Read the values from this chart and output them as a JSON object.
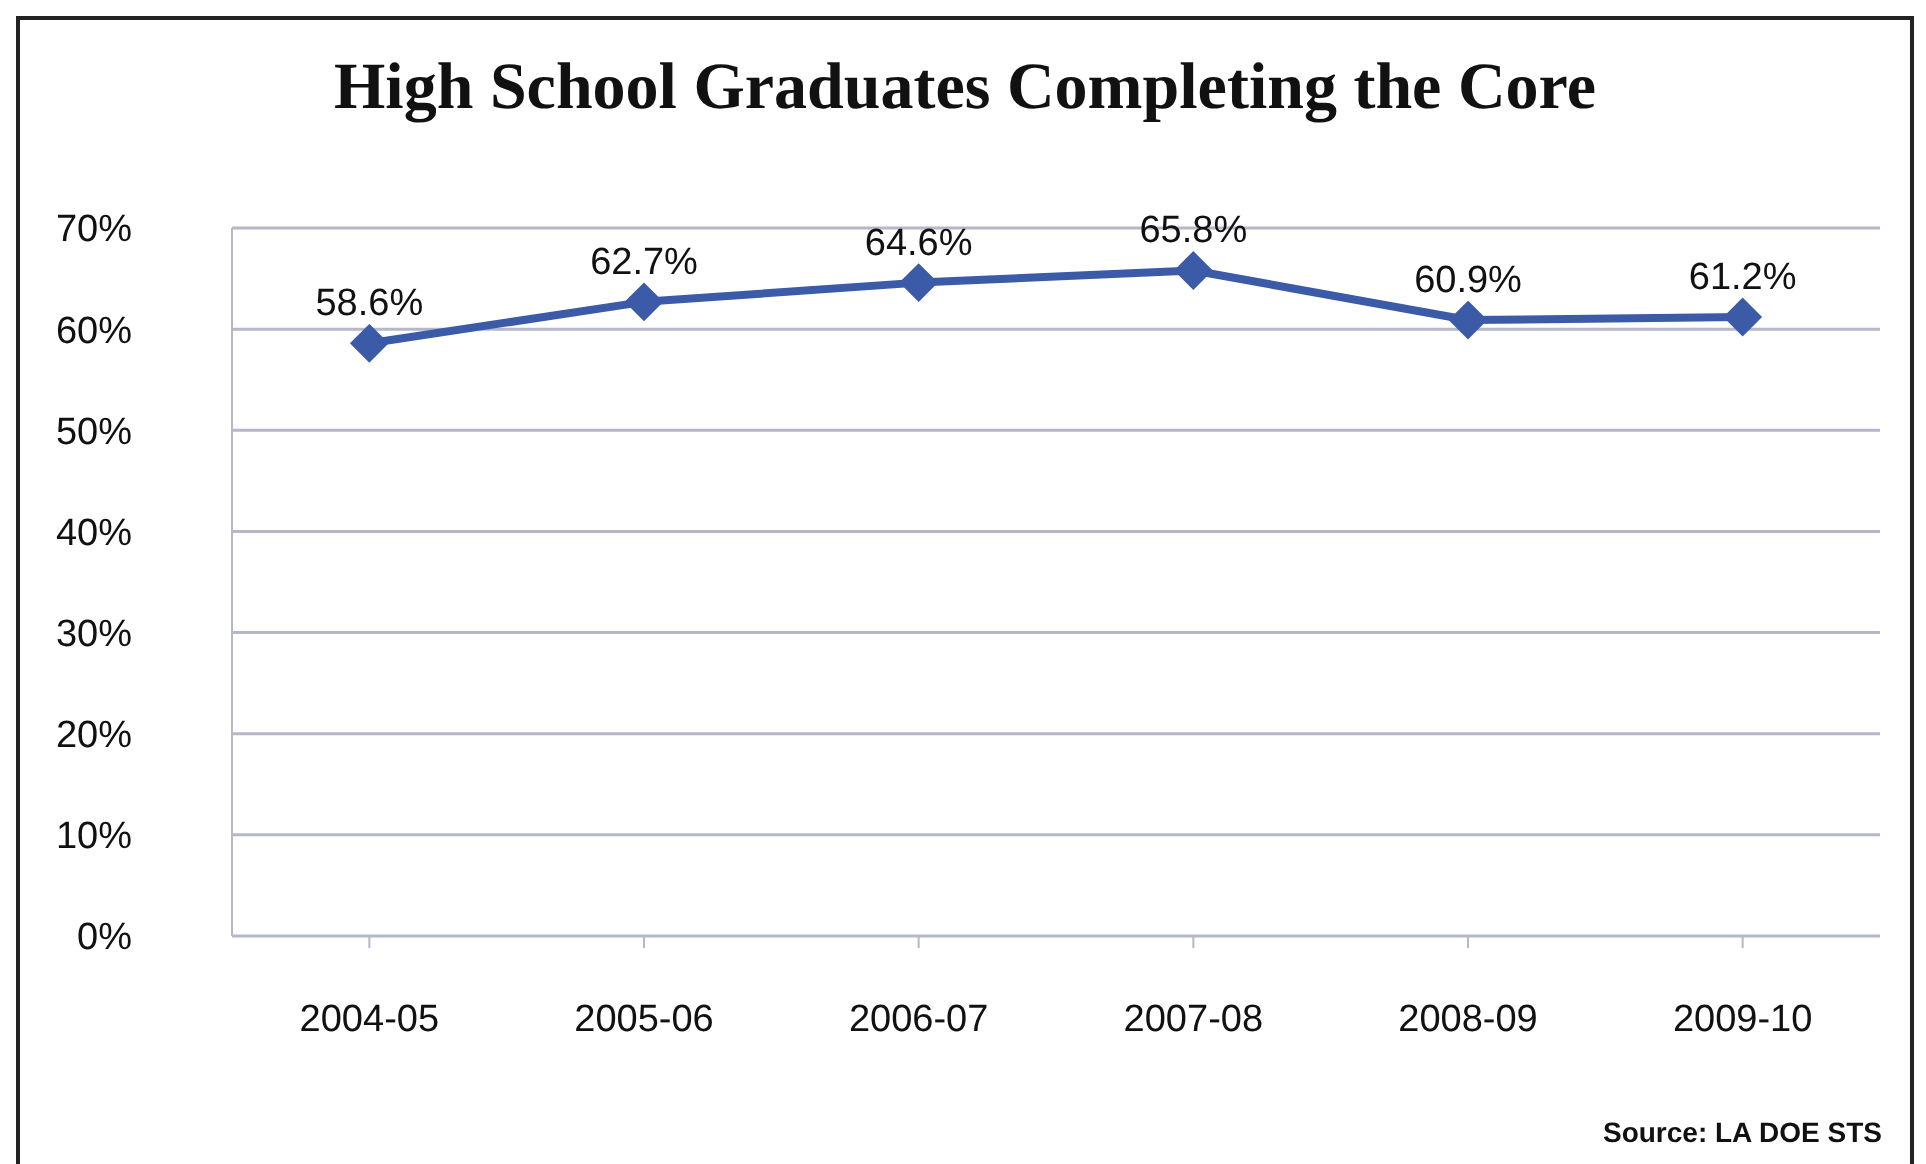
{
  "chart_data": {
    "type": "line",
    "title": "High School Graduates Completing the Core",
    "categories": [
      "2004-05",
      "2005-06",
      "2006-07",
      "2007-08",
      "2008-09",
      "2009-10"
    ],
    "values": [
      58.6,
      62.7,
      64.6,
      65.8,
      60.9,
      61.2
    ],
    "value_labels": [
      "58.6%",
      "62.7%",
      "64.6%",
      "65.8%",
      "60.9%",
      "61.2%"
    ],
    "color": "#3b5ba8",
    "marker": "diamond",
    "line_style": "solid",
    "ylim": [
      0,
      70
    ],
    "yticks": [
      {
        "value": 0,
        "label": "0%"
      },
      {
        "value": 10,
        "label": "10%"
      },
      {
        "value": 20,
        "label": "20%"
      },
      {
        "value": 30,
        "label": "30%"
      },
      {
        "value": 40,
        "label": "40%"
      },
      {
        "value": 50,
        "label": "50%"
      },
      {
        "value": 60,
        "label": "60%"
      },
      {
        "value": 70,
        "label": "70%"
      }
    ],
    "grid": "y",
    "annotations": [
      "Source: LA DOE STS"
    ]
  }
}
